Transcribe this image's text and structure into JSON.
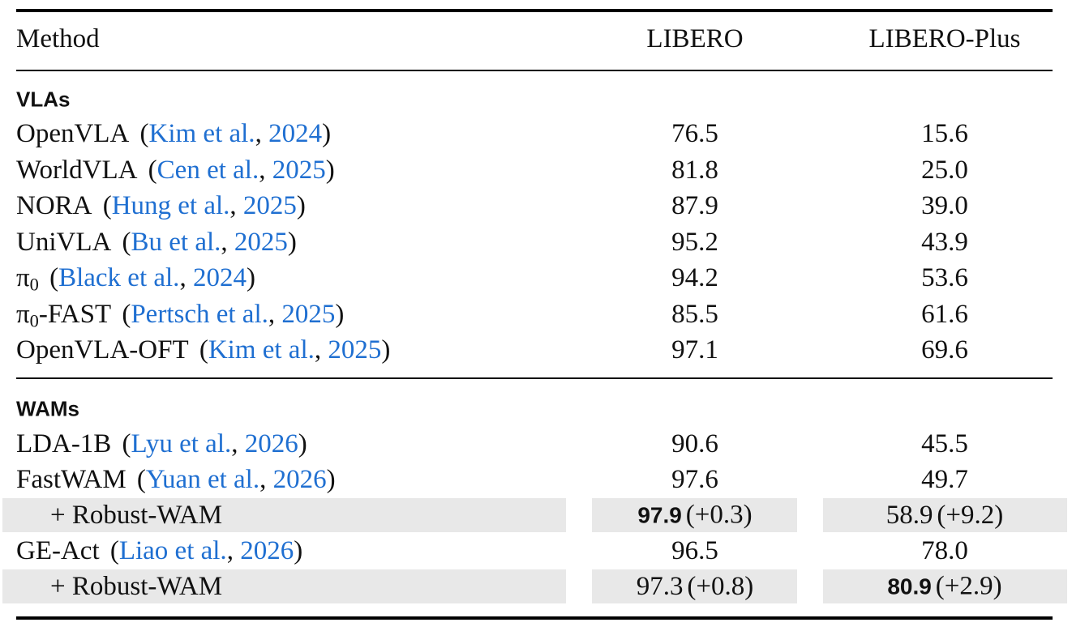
{
  "citation_format": {
    "open": "(",
    "sep": ", ",
    "close": ")"
  },
  "table": {
    "header": [
      "Method",
      "LIBERO",
      "LIBERO-Plus"
    ],
    "sections": [
      {
        "label": "VLAs",
        "rows": [
          {
            "method": "OpenVLA",
            "authors": "Kim et al.",
            "year": "2024",
            "libero": "76.5",
            "libero_plus": "15.6"
          },
          {
            "method": "WorldVLA",
            "authors": "Cen et al.",
            "year": "2025",
            "libero": "81.8",
            "libero_plus": "25.0"
          },
          {
            "method": "NORA",
            "authors": "Hung et al.",
            "year": "2025",
            "libero": "87.9",
            "libero_plus": "39.0"
          },
          {
            "method": "UniVLA",
            "authors": "Bu et al.",
            "year": "2025",
            "libero": "95.2",
            "libero_plus": "43.9"
          },
          {
            "method": "π",
            "method_sub": "0",
            "authors": "Black et al.",
            "year": "2024",
            "libero": "94.2",
            "libero_plus": "53.6"
          },
          {
            "method": "π",
            "method_sub": "0",
            "method_suffix": "-FAST",
            "authors": "Pertsch et al.",
            "year": "2025",
            "libero": "85.5",
            "libero_plus": "61.6"
          },
          {
            "method": "OpenVLA-OFT",
            "authors": "Kim et al.",
            "year": "2025",
            "libero": "97.1",
            "libero_plus": "69.6"
          }
        ]
      },
      {
        "label": "WAMs",
        "rows": [
          {
            "method": "LDA-1B",
            "authors": "Lyu et al.",
            "year": "2026",
            "libero": "90.6",
            "libero_plus": "45.5"
          },
          {
            "method": "FastWAM",
            "authors": "Yuan et al.",
            "year": "2026",
            "libero": "97.6",
            "libero_plus": "49.7"
          },
          {
            "method": "+ Robust-WAM",
            "shaded": true,
            "libero": {
              "value": "97.9",
              "delta": "(+0.3)",
              "bold": true
            },
            "libero_plus": {
              "value": "58.9",
              "delta": "(+9.2)",
              "bold": false
            }
          },
          {
            "method": "GE-Act",
            "authors": "Liao et al.",
            "year": "2026",
            "libero": "96.5",
            "libero_plus": "78.0"
          },
          {
            "method": "+ Robust-WAM",
            "shaded": true,
            "libero": {
              "value": "97.3",
              "delta": "(+0.8)",
              "bold": false
            },
            "libero_plus": {
              "value": "80.9",
              "delta": "(+2.9)",
              "bold": true
            }
          }
        ]
      }
    ]
  }
}
